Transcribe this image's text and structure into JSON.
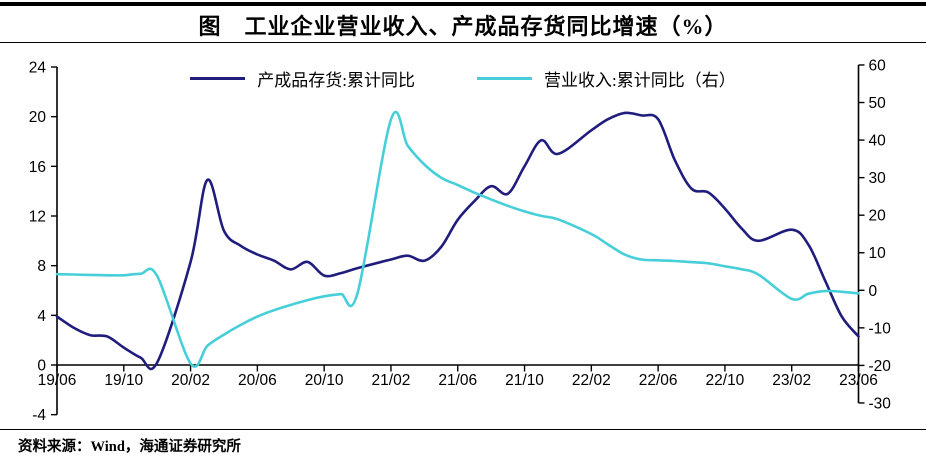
{
  "page": {
    "title": "图　工业企业营业收入、产成品存货同比增速（%）",
    "source_note": "资料来源：Wind，海通证券研究所"
  },
  "chart_data": {
    "type": "line",
    "title": "工业企业营业收入、产成品存货同比增速（%）",
    "grid": false,
    "legend_position": "top-center",
    "x_tick_labels": [
      "19/06",
      "19/10",
      "20/02",
      "20/06",
      "20/10",
      "21/02",
      "21/06",
      "21/10",
      "22/02",
      "22/06",
      "22/10",
      "23/02",
      "23/06"
    ],
    "left_axis": {
      "min": -4,
      "max": 24,
      "ticks": [
        24,
        20,
        16,
        12,
        8,
        4,
        0,
        -4
      ]
    },
    "right_axis": {
      "min": -30,
      "max": 60,
      "ticks": [
        60,
        50,
        40,
        30,
        20,
        10,
        0,
        -10,
        -20,
        -30
      ]
    },
    "x": [
      "19/06",
      "19/07",
      "19/08",
      "19/09",
      "19/10",
      "19/11",
      "19/12",
      "20/02",
      "20/03",
      "20/04",
      "20/05",
      "20/06",
      "20/07",
      "20/08",
      "20/09",
      "20/10",
      "20/11",
      "20/12",
      "21/02",
      "21/03",
      "21/04",
      "21/05",
      "21/06",
      "21/07",
      "21/08",
      "21/09",
      "21/10",
      "21/11",
      "21/12",
      "22/02",
      "22/03",
      "22/04",
      "22/05",
      "22/06",
      "22/07",
      "22/08",
      "22/09",
      "22/10",
      "22/11",
      "22/12",
      "23/02",
      "23/03",
      "23/04",
      "23/05",
      "23/06"
    ],
    "series": [
      {
        "name": "产成品存货:累计同比",
        "axis": "left",
        "color": "#201d7d",
        "values": [
          3.9,
          3.0,
          2.4,
          2.3,
          1.4,
          0.6,
          0.2,
          8.3,
          14.9,
          10.8,
          9.6,
          8.9,
          8.4,
          7.7,
          8.3,
          7.2,
          7.4,
          7.8,
          8.5,
          8.8,
          8.4,
          9.5,
          11.7,
          13.2,
          14.4,
          13.8,
          16.0,
          18.1,
          17.0,
          18.9,
          19.8,
          20.3,
          20.1,
          19.8,
          16.5,
          14.2,
          13.9,
          12.6,
          11.0,
          10.0,
          10.9,
          9.7,
          6.8,
          3.9,
          2.3
        ]
      },
      {
        "name": "营业收入:累计同比（右）",
        "axis": "right",
        "color": "#47cfd9",
        "values": [
          4.3,
          4.2,
          4.1,
          4.0,
          4.0,
          4.4,
          3.8,
          -19.5,
          -14.8,
          -11.8,
          -9.2,
          -7.0,
          -5.3,
          -3.9,
          -2.6,
          -1.6,
          -1.0,
          -0.7,
          45.5,
          38.5,
          33.5,
          30.0,
          28.0,
          26.0,
          24.2,
          22.5,
          21.0,
          19.8,
          18.9,
          15.0,
          12.2,
          9.5,
          8.2,
          8.0,
          7.8,
          7.5,
          7.2,
          6.4,
          5.6,
          4.2,
          -2.3,
          -0.9,
          -0.2,
          -0.4,
          -0.8
        ]
      }
    ]
  }
}
